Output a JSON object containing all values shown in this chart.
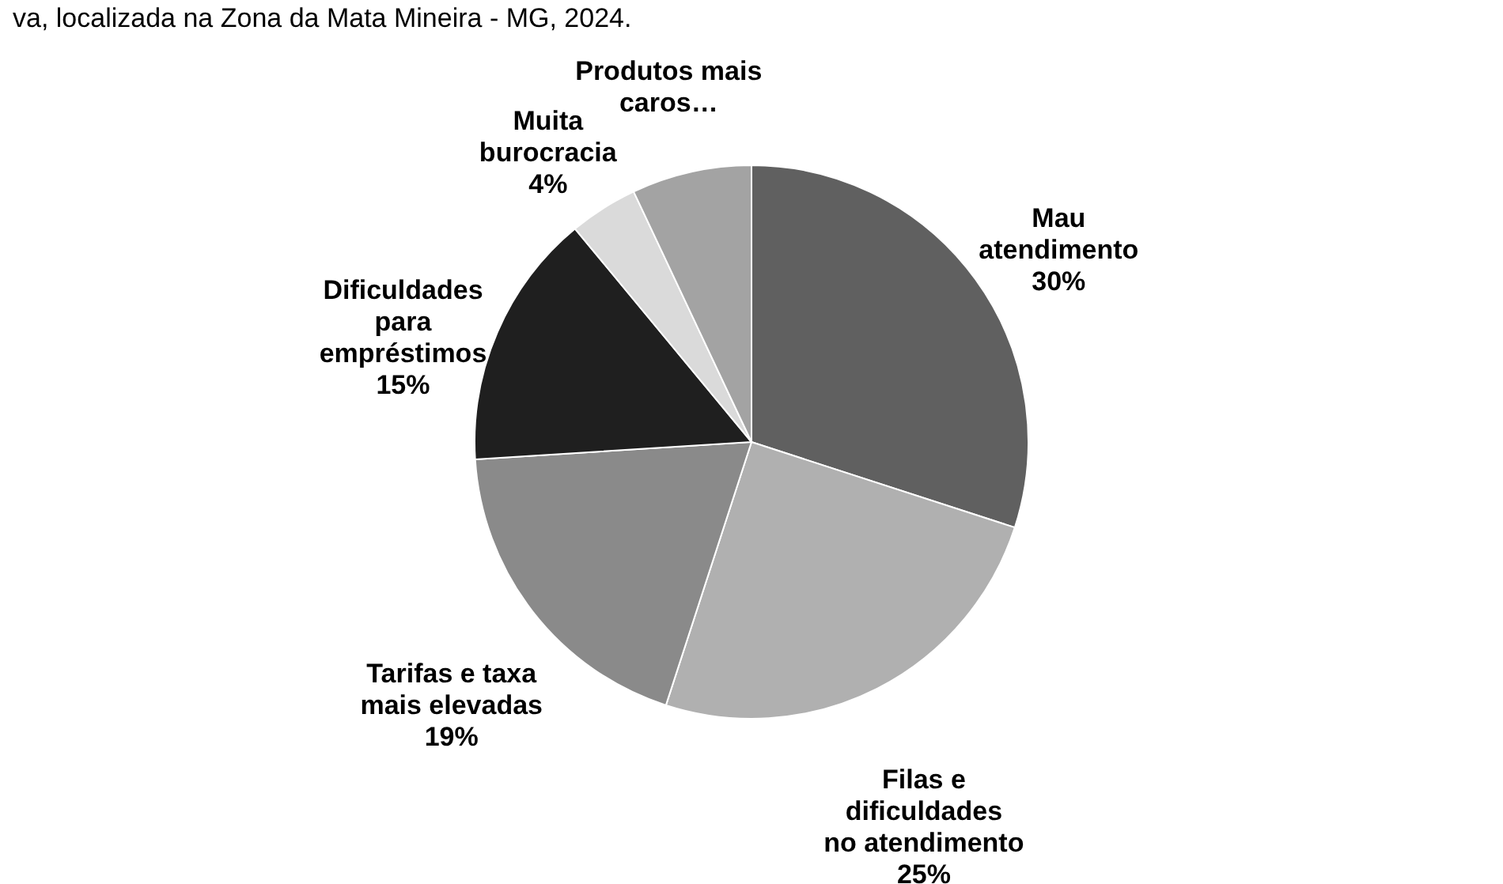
{
  "chart_data": {
    "type": "pie",
    "annotations": [
      "va, localizada na Zona da Mata Mineira - MG, 2024."
    ],
    "categories": [
      "Mau atendimento",
      "Filas e dificuldades no atendimento",
      "Tarifas e taxa mais elevadas",
      "Dificuldades para empréstimos",
      "Muita burocracia",
      "Produtos mais caros…"
    ],
    "values": [
      30,
      25,
      19,
      15,
      4,
      7
    ],
    "value_labels": [
      "30%",
      "25%",
      "19%",
      "15%",
      "4%",
      null
    ],
    "colors": [
      "#606060",
      "#b0b0b0",
      "#8a8a8a",
      "#1f1f1f",
      "#dadada",
      "#a3a3a3"
    ]
  }
}
